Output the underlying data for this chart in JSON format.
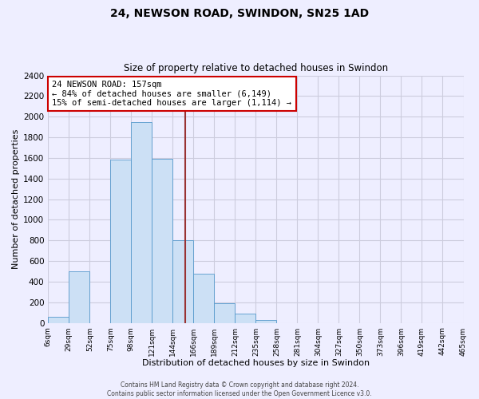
{
  "title": "24, NEWSON ROAD, SWINDON, SN25 1AD",
  "subtitle": "Size of property relative to detached houses in Swindon",
  "xlabel": "Distribution of detached houses by size in Swindon",
  "ylabel": "Number of detached properties",
  "annotation_line1": "24 NEWSON ROAD: 157sqm",
  "annotation_line2": "← 84% of detached houses are smaller (6,149)",
  "annotation_line3": "15% of semi-detached houses are larger (1,114) →",
  "bin_labels": [
    "6sqm",
    "29sqm",
    "52sqm",
    "75sqm",
    "98sqm",
    "121sqm",
    "144sqm",
    "166sqm",
    "189sqm",
    "212sqm",
    "235sqm",
    "258sqm",
    "281sqm",
    "304sqm",
    "327sqm",
    "350sqm",
    "373sqm",
    "396sqm",
    "419sqm",
    "442sqm",
    "465sqm"
  ],
  "bar_values": [
    55,
    500,
    0,
    1580,
    1950,
    1590,
    800,
    480,
    190,
    90,
    30,
    0,
    0,
    0,
    0,
    0,
    0,
    0,
    0,
    0
  ],
  "bar_color": "#cce0f5",
  "bar_edge_color": "#5599cc",
  "vline_color": "#993333",
  "property_size_sqm": 157,
  "annotation_box_color": "#ffffff",
  "annotation_box_edge": "#cc0000",
  "ylim": [
    0,
    2400
  ],
  "yticks": [
    0,
    200,
    400,
    600,
    800,
    1000,
    1200,
    1400,
    1600,
    1800,
    2000,
    2200,
    2400
  ],
  "footer_line1": "Contains HM Land Registry data © Crown copyright and database right 2024.",
  "footer_line2": "Contains public sector information licensed under the Open Government Licence v3.0.",
  "background_color": "#eeeeff",
  "grid_color": "#ccccdd"
}
